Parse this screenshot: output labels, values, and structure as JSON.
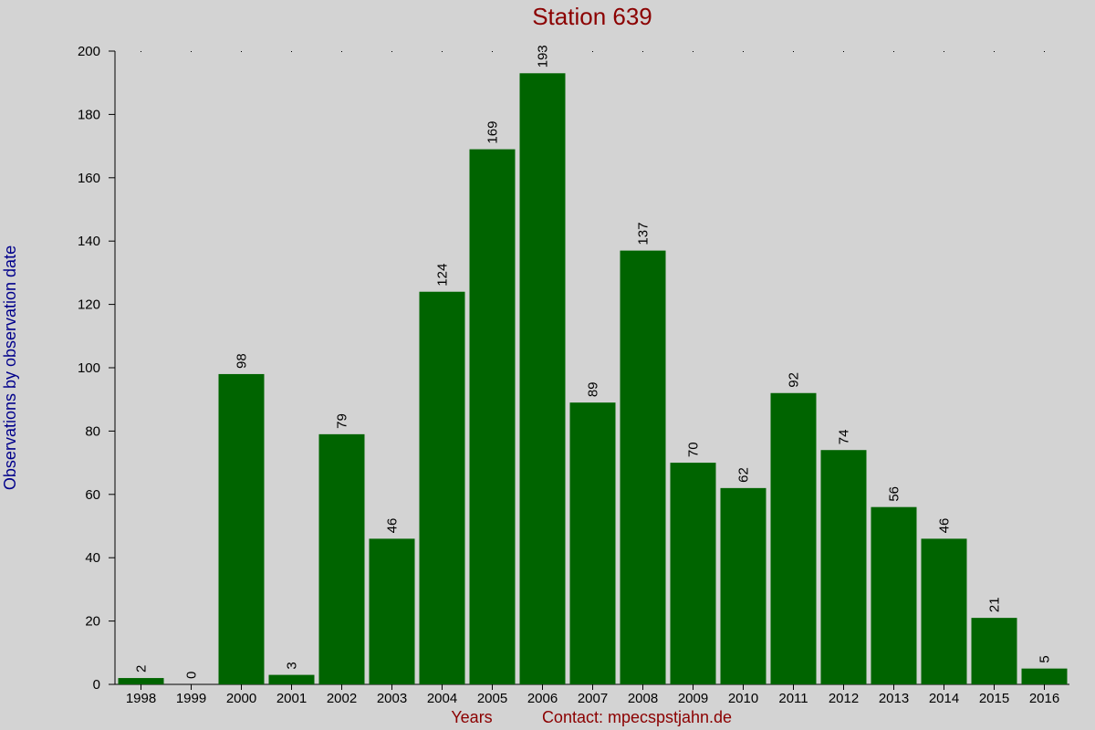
{
  "chart_data": {
    "type": "bar",
    "title": "Station 639",
    "xlabel": "Years",
    "ylabel": "Observations by observation date",
    "footer_text": "Contact: mpecspstjahn.de",
    "categories": [
      "1998",
      "1999",
      "2000",
      "2001",
      "2002",
      "2003",
      "2004",
      "2005",
      "2006",
      "2007",
      "2008",
      "2009",
      "2010",
      "2011",
      "2012",
      "2013",
      "2014",
      "2015",
      "2016"
    ],
    "values": [
      2,
      0,
      98,
      3,
      79,
      46,
      124,
      169,
      193,
      89,
      137,
      70,
      62,
      92,
      74,
      56,
      46,
      21,
      5
    ],
    "data_labels": [
      "2",
      "0",
      "98",
      "3",
      "79",
      "46",
      "124",
      "169",
      "193",
      "89",
      "137",
      "70",
      "62",
      "92",
      "74",
      "56",
      "46",
      "21",
      "5"
    ],
    "ylim": [
      0,
      200
    ],
    "yticks": [
      0,
      20,
      40,
      60,
      80,
      100,
      120,
      140,
      160,
      180,
      200
    ],
    "ytick_labels": [
      "0",
      "20",
      "40",
      "60",
      "80",
      "100",
      "120",
      "140",
      "160",
      "180",
      "200"
    ],
    "grid": "dotted-top",
    "legend": "none",
    "colors": {
      "bar": "#006400",
      "background": "#d3d3d3",
      "title": "#8b0000",
      "ylabel": "#00008b",
      "xlabel": "#8b0000"
    }
  }
}
